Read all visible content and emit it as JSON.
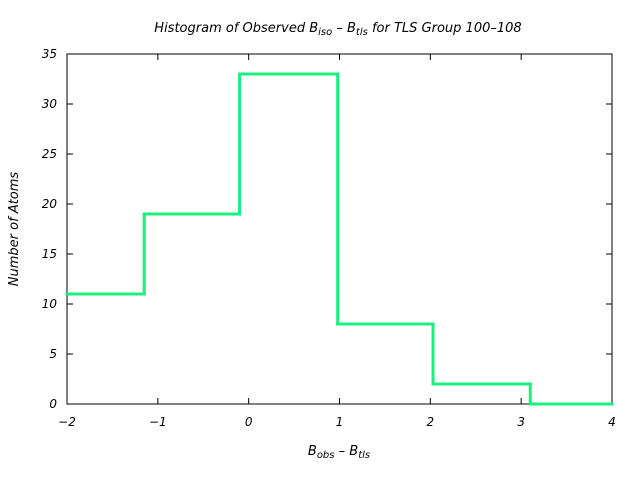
{
  "chart_data": {
    "type": "line",
    "title": {
      "prefix": "Histogram of Observed B",
      "sub1": "iso",
      "minus": " – B",
      "sub2": "tls",
      "suffix": " for TLS Group 100–108"
    },
    "xlabel": {
      "base1": "B",
      "sub1": "obs",
      "minus": " – B",
      "sub2": "tls"
    },
    "ylabel": "Number of Atoms",
    "xlim": [
      -2,
      4
    ],
    "ylim": [
      0,
      35
    ],
    "x_ticks": [
      {
        "value": -2,
        "label": "−2"
      },
      {
        "value": -1,
        "label": "−1"
      },
      {
        "value": 0,
        "label": "0"
      },
      {
        "value": 1,
        "label": "1"
      },
      {
        "value": 2,
        "label": "2"
      },
      {
        "value": 3,
        "label": "3"
      },
      {
        "value": 4,
        "label": "4"
      }
    ],
    "y_ticks": [
      {
        "value": 0,
        "label": "0"
      },
      {
        "value": 5,
        "label": "5"
      },
      {
        "value": 10,
        "label": "10"
      },
      {
        "value": 15,
        "label": "15"
      },
      {
        "value": 20,
        "label": "20"
      },
      {
        "value": 25,
        "label": "25"
      },
      {
        "value": 30,
        "label": "30"
      },
      {
        "value": 35,
        "label": "35"
      }
    ],
    "grid": false,
    "legend": "none",
    "series": [
      {
        "style": "step",
        "color": "#1aef7f",
        "bins": [
          {
            "x0": -2.0,
            "x1": -1.15,
            "count": 11
          },
          {
            "x0": -1.15,
            "x1": -0.1,
            "count": 19
          },
          {
            "x0": -0.1,
            "x1": 0.98,
            "count": 33
          },
          {
            "x0": 0.98,
            "x1": 2.03,
            "count": 8
          },
          {
            "x0": 2.03,
            "x1": 3.1,
            "count": 2
          },
          {
            "x0": 3.1,
            "x1": 4.0,
            "count": 0
          }
        ]
      }
    ]
  }
}
